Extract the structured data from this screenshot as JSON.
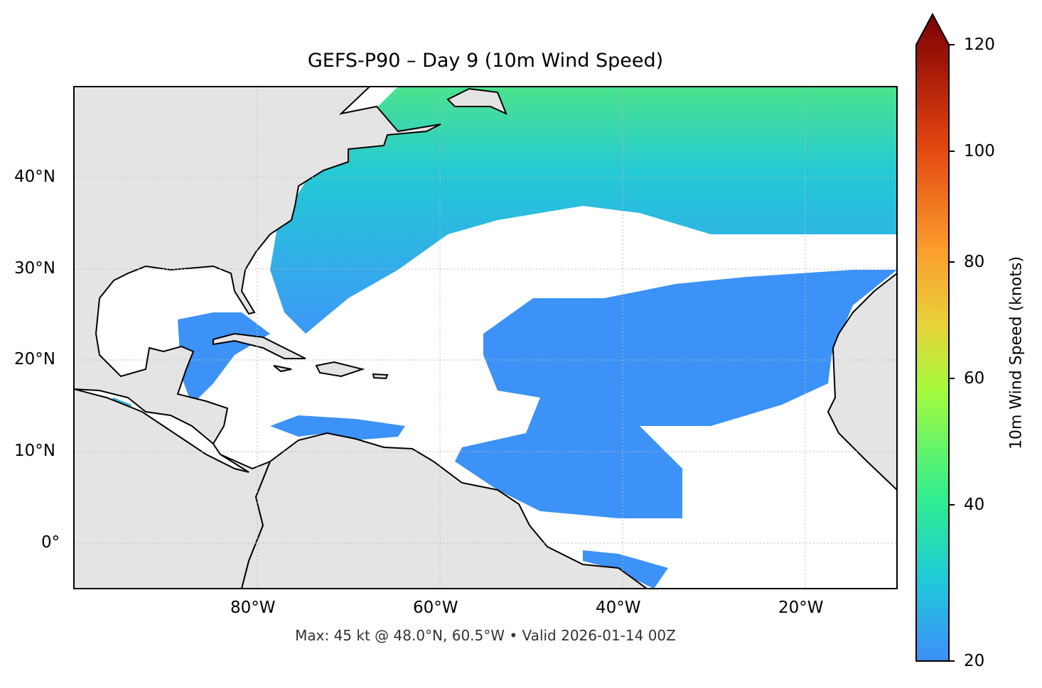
{
  "title": "GEFS-P90 – Day 9 (10m Wind Speed)",
  "footer": "Max: 45 kt @ 48.0°N, 60.5°W • Valid 2026-01-14 00Z",
  "map": {
    "extent": {
      "lon": [
        -100,
        -10
      ],
      "lat": [
        -5,
        50
      ]
    },
    "x_ticks": [
      "80°W",
      "60°W",
      "40°W",
      "20°W"
    ],
    "y_ticks": [
      "40°N",
      "30°N",
      "20°N",
      "10°N",
      "0°"
    ],
    "gridlines": true,
    "land_color": "#e4e4e4",
    "ocean_color": "#ffffff"
  },
  "colorbar": {
    "label": "10m Wind Speed (knots)",
    "ticks": [
      "20",
      "40",
      "60",
      "80",
      "100",
      "120"
    ],
    "range": [
      20,
      120
    ],
    "extend": "max",
    "colormap": [
      "#3e8ef9",
      "#1fc8db",
      "#2eee90",
      "#a6fa3c",
      "#e8d23a",
      "#fb9b2c",
      "#e1440f",
      "#9e1507",
      "#7a0403"
    ]
  }
}
